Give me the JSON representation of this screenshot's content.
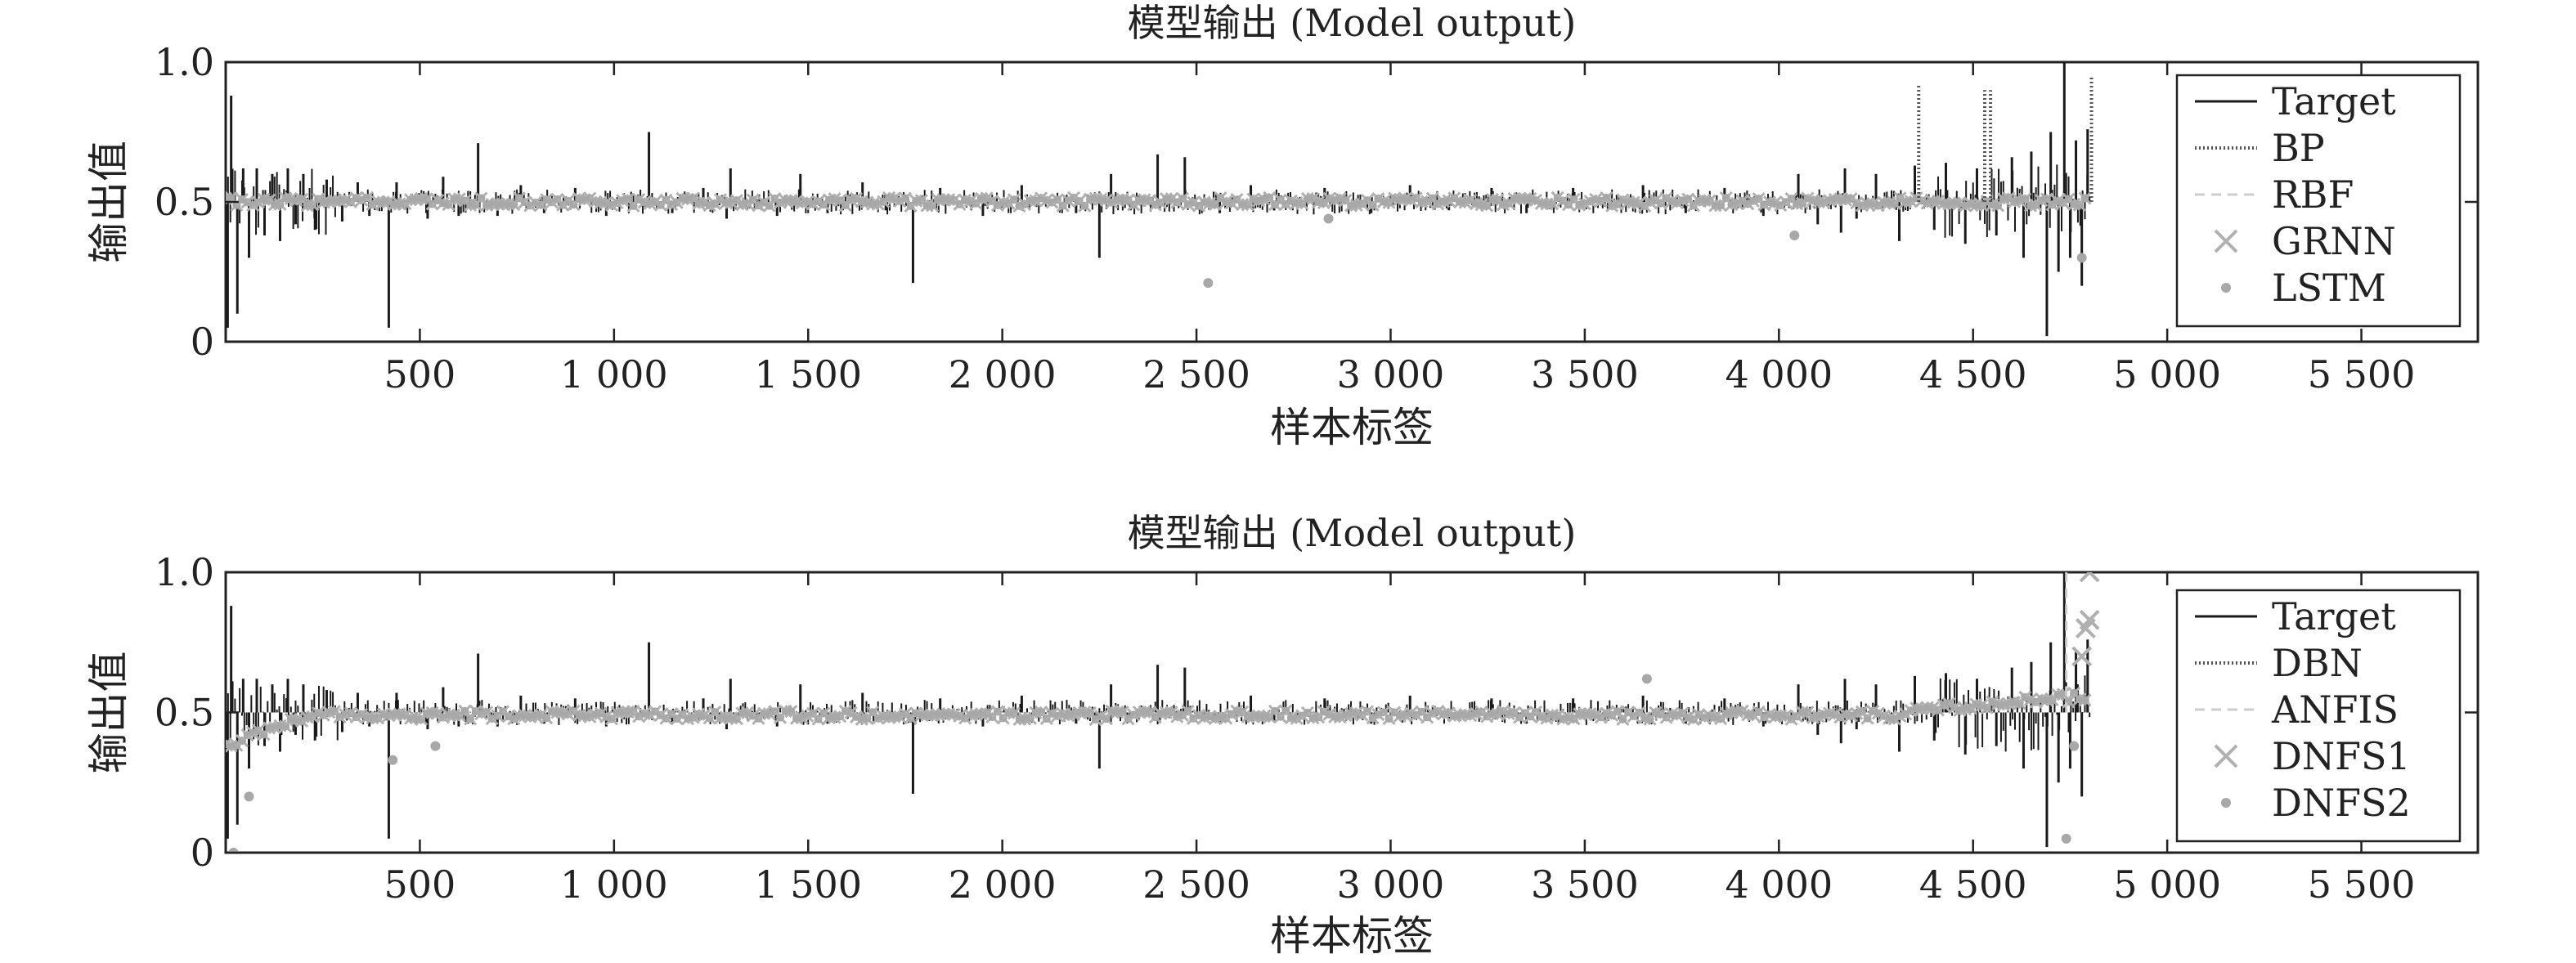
{
  "chart_data": [
    {
      "type": "line",
      "title": "模型输出 (Model output)",
      "xlabel": "样本标签",
      "ylabel": "输出值",
      "xlim": [
        0,
        5800
      ],
      "ylim": [
        0,
        1
      ],
      "xticks": [
        500,
        1000,
        1500,
        2000,
        2500,
        3000,
        3500,
        4000,
        4500,
        5000,
        5500
      ],
      "xtick_labels": [
        "500",
        "1 000",
        "1 500",
        "2 000",
        "2 500",
        "3 000",
        "3 500",
        "4 000",
        "4 500",
        "5 000",
        "5 500"
      ],
      "yticks": [
        0,
        0.5,
        1
      ],
      "ytick_labels": [
        "0",
        "0.5",
        "1.0"
      ],
      "legend_position": "top-right",
      "grid": false,
      "series": [
        {
          "name": "Target",
          "style": "solid",
          "color": "#1a1a1a"
        },
        {
          "name": "BP",
          "style": "dotted",
          "color": "#555555"
        },
        {
          "name": "RBF",
          "style": "dashed",
          "color": "#cccccc"
        },
        {
          "name": "GRNN",
          "style": "cross-marker",
          "color": "#b0b0b0"
        },
        {
          "name": "LSTM",
          "style": "dot-marker",
          "color": "#a8a8a8"
        }
      ],
      "spikes": [
        [
          5,
          0.05
        ],
        [
          14,
          0.88
        ],
        [
          30,
          0.1
        ],
        [
          45,
          0.62
        ],
        [
          60,
          0.3
        ],
        [
          80,
          0.62
        ],
        [
          100,
          0.38
        ],
        [
          120,
          0.6
        ],
        [
          140,
          0.36
        ],
        [
          160,
          0.62
        ],
        [
          180,
          0.42
        ],
        [
          200,
          0.6
        ],
        [
          230,
          0.4
        ],
        [
          260,
          0.58
        ],
        [
          300,
          0.43
        ],
        [
          340,
          0.57
        ],
        [
          370,
          0.45
        ],
        [
          420,
          0.05
        ],
        [
          440,
          0.57
        ],
        [
          520,
          0.44
        ],
        [
          560,
          0.59
        ],
        [
          600,
          0.45
        ],
        [
          650,
          0.71
        ],
        [
          700,
          0.45
        ],
        [
          760,
          0.56
        ],
        [
          820,
          0.46
        ],
        [
          900,
          0.55
        ],
        [
          980,
          0.45
        ],
        [
          1090,
          0.75
        ],
        [
          1150,
          0.46
        ],
        [
          1230,
          0.55
        ],
        [
          1290,
          0.44
        ],
        [
          1300,
          0.62
        ],
        [
          1420,
          0.45
        ],
        [
          1480,
          0.6
        ],
        [
          1550,
          0.46
        ],
        [
          1640,
          0.57
        ],
        [
          1700,
          0.47
        ],
        [
          1770,
          0.21
        ],
        [
          1840,
          0.55
        ],
        [
          1950,
          0.45
        ],
        [
          2050,
          0.56
        ],
        [
          2190,
          0.46
        ],
        [
          2250,
          0.3
        ],
        [
          2280,
          0.6
        ],
        [
          2330,
          0.47
        ],
        [
          2400,
          0.67
        ],
        [
          2470,
          0.66
        ],
        [
          2560,
          0.46
        ],
        [
          2640,
          0.56
        ],
        [
          2700,
          0.47
        ],
        [
          2830,
          0.55
        ],
        [
          2950,
          0.46
        ],
        [
          3050,
          0.56
        ],
        [
          3150,
          0.47
        ],
        [
          3260,
          0.55
        ],
        [
          3350,
          0.46
        ],
        [
          3470,
          0.55
        ],
        [
          3560,
          0.47
        ],
        [
          3650,
          0.56
        ],
        [
          3760,
          0.46
        ],
        [
          3860,
          0.55
        ],
        [
          3960,
          0.45
        ],
        [
          4050,
          0.6
        ],
        [
          4100,
          0.42
        ],
        [
          4160,
          0.39
        ],
        [
          4170,
          0.62
        ],
        [
          4200,
          0.44
        ],
        [
          4250,
          0.6
        ],
        [
          4310,
          0.36
        ],
        [
          4350,
          0.63
        ],
        [
          4400,
          0.4
        ],
        [
          4430,
          0.64
        ],
        [
          4480,
          0.35
        ],
        [
          4510,
          0.62
        ],
        [
          4560,
          0.38
        ],
        [
          4600,
          0.66
        ],
        [
          4630,
          0.3
        ],
        [
          4650,
          0.68
        ],
        [
          4690,
          0.02
        ],
        [
          4700,
          0.75
        ],
        [
          4720,
          0.25
        ],
        [
          4735,
          1.0
        ],
        [
          4750,
          0.3
        ],
        [
          4765,
          0.72
        ],
        [
          4780,
          0.2
        ],
        [
          4795,
          0.76
        ]
      ],
      "bp_spikes": [
        [
          4360,
          0.92
        ],
        [
          4530,
          0.9
        ],
        [
          4545,
          0.9
        ],
        [
          4805,
          0.95
        ]
      ],
      "lstm_outliers": [
        [
          2530,
          0.21
        ],
        [
          2840,
          0.44
        ],
        [
          4040,
          0.38
        ],
        [
          4780,
          0.3
        ]
      ]
    },
    {
      "type": "line",
      "title": "模型输出 (Model output)",
      "xlabel": "样本标签",
      "ylabel": "输出值",
      "xlim": [
        0,
        5800
      ],
      "ylim": [
        0,
        1
      ],
      "xticks": [
        500,
        1000,
        1500,
        2000,
        2500,
        3000,
        3500,
        4000,
        4500,
        5000,
        5500
      ],
      "xtick_labels": [
        "500",
        "1 000",
        "1 500",
        "2 000",
        "2 500",
        "3 000",
        "3 500",
        "4 000",
        "4 500",
        "5 000",
        "5 500"
      ],
      "yticks": [
        0,
        0.5,
        1
      ],
      "ytick_labels": [
        "0",
        "0.5",
        "1.0"
      ],
      "legend_position": "top-right",
      "grid": false,
      "series": [
        {
          "name": "Target",
          "style": "solid",
          "color": "#1a1a1a"
        },
        {
          "name": "DBN",
          "style": "dotted",
          "color": "#555555"
        },
        {
          "name": "ANFIS",
          "style": "dashed",
          "color": "#cccccc"
        },
        {
          "name": "DNFS1",
          "style": "cross-marker",
          "color": "#b0b0b0"
        },
        {
          "name": "DNFS2",
          "style": "dot-marker",
          "color": "#a8a8a8"
        }
      ],
      "spikes": [
        [
          5,
          0.05
        ],
        [
          14,
          0.88
        ],
        [
          30,
          0.1
        ],
        [
          45,
          0.62
        ],
        [
          60,
          0.3
        ],
        [
          80,
          0.62
        ],
        [
          100,
          0.38
        ],
        [
          120,
          0.6
        ],
        [
          140,
          0.36
        ],
        [
          160,
          0.62
        ],
        [
          180,
          0.42
        ],
        [
          200,
          0.6
        ],
        [
          230,
          0.4
        ],
        [
          260,
          0.58
        ],
        [
          300,
          0.43
        ],
        [
          340,
          0.57
        ],
        [
          370,
          0.45
        ],
        [
          420,
          0.05
        ],
        [
          440,
          0.57
        ],
        [
          520,
          0.44
        ],
        [
          560,
          0.59
        ],
        [
          600,
          0.45
        ],
        [
          650,
          0.71
        ],
        [
          700,
          0.45
        ],
        [
          760,
          0.56
        ],
        [
          820,
          0.46
        ],
        [
          900,
          0.55
        ],
        [
          980,
          0.45
        ],
        [
          1090,
          0.75
        ],
        [
          1150,
          0.46
        ],
        [
          1230,
          0.55
        ],
        [
          1290,
          0.44
        ],
        [
          1300,
          0.62
        ],
        [
          1420,
          0.45
        ],
        [
          1480,
          0.6
        ],
        [
          1550,
          0.46
        ],
        [
          1640,
          0.57
        ],
        [
          1700,
          0.47
        ],
        [
          1770,
          0.21
        ],
        [
          1840,
          0.55
        ],
        [
          1950,
          0.45
        ],
        [
          2050,
          0.56
        ],
        [
          2190,
          0.46
        ],
        [
          2250,
          0.3
        ],
        [
          2280,
          0.6
        ],
        [
          2330,
          0.47
        ],
        [
          2400,
          0.67
        ],
        [
          2470,
          0.66
        ],
        [
          2560,
          0.46
        ],
        [
          2640,
          0.56
        ],
        [
          2700,
          0.47
        ],
        [
          2830,
          0.55
        ],
        [
          2950,
          0.46
        ],
        [
          3050,
          0.56
        ],
        [
          3150,
          0.47
        ],
        [
          3260,
          0.55
        ],
        [
          3350,
          0.46
        ],
        [
          3470,
          0.55
        ],
        [
          3560,
          0.47
        ],
        [
          3650,
          0.56
        ],
        [
          3760,
          0.46
        ],
        [
          3860,
          0.55
        ],
        [
          3960,
          0.45
        ],
        [
          4050,
          0.6
        ],
        [
          4100,
          0.42
        ],
        [
          4160,
          0.39
        ],
        [
          4170,
          0.62
        ],
        [
          4200,
          0.44
        ],
        [
          4250,
          0.6
        ],
        [
          4310,
          0.36
        ],
        [
          4350,
          0.63
        ],
        [
          4400,
          0.4
        ],
        [
          4430,
          0.64
        ],
        [
          4480,
          0.35
        ],
        [
          4510,
          0.62
        ],
        [
          4560,
          0.38
        ],
        [
          4600,
          0.66
        ],
        [
          4630,
          0.3
        ],
        [
          4650,
          0.68
        ],
        [
          4690,
          0.02
        ],
        [
          4700,
          0.75
        ],
        [
          4720,
          0.25
        ],
        [
          4735,
          1.0
        ],
        [
          4750,
          0.3
        ],
        [
          4765,
          0.72
        ],
        [
          4780,
          0.2
        ],
        [
          4795,
          0.76
        ]
      ],
      "dnfs_markers": [
        [
          4800,
          1.0
        ],
        [
          4800,
          0.83
        ],
        [
          4790,
          0.8
        ],
        [
          4780,
          0.7
        ]
      ],
      "dnfs2_outliers": [
        [
          20,
          0.0
        ],
        [
          60,
          0.2
        ],
        [
          430,
          0.33
        ],
        [
          540,
          0.38
        ],
        [
          3660,
          0.62
        ],
        [
          4740,
          0.05
        ],
        [
          4760,
          0.38
        ]
      ]
    }
  ]
}
